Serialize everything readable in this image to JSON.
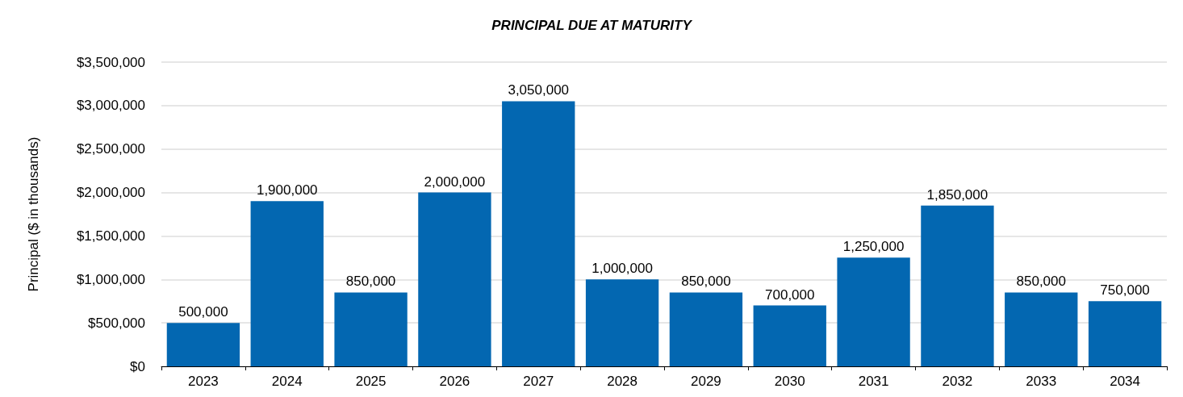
{
  "chart_data": {
    "type": "bar",
    "title": "PRINCIPAL DUE AT MATURITY",
    "ylabel": "Principal ($ in thousands)",
    "categories": [
      "2023",
      "2024",
      "2025",
      "2026",
      "2027",
      "2028",
      "2029",
      "2030",
      "2031",
      "2032",
      "2033",
      "2034"
    ],
    "values": [
      500000,
      1900000,
      850000,
      2000000,
      3050000,
      1000000,
      850000,
      700000,
      1250000,
      1850000,
      850000,
      750000
    ],
    "value_labels": [
      "500,000",
      "1,900,000",
      "850,000",
      "2,000,000",
      "3,050,000",
      "1,000,000",
      "850,000",
      "700,000",
      "1,250,000",
      "1,850,000",
      "850,000",
      "750,000"
    ],
    "color": "#0367b1",
    "ylim": [
      0,
      3500000
    ],
    "yticks": [
      {
        "value": 0,
        "label": "$0"
      },
      {
        "value": 500000,
        "label": "$500,000"
      },
      {
        "value": 1000000,
        "label": "$1,000,000"
      },
      {
        "value": 1500000,
        "label": "$1,500,000"
      },
      {
        "value": 2000000,
        "label": "$2,000,000"
      },
      {
        "value": 2500000,
        "label": "$2,500,000"
      },
      {
        "value": 3000000,
        "label": "$3,000,000"
      },
      {
        "value": 3500000,
        "label": "$3,500,000"
      }
    ],
    "grid": "y"
  }
}
